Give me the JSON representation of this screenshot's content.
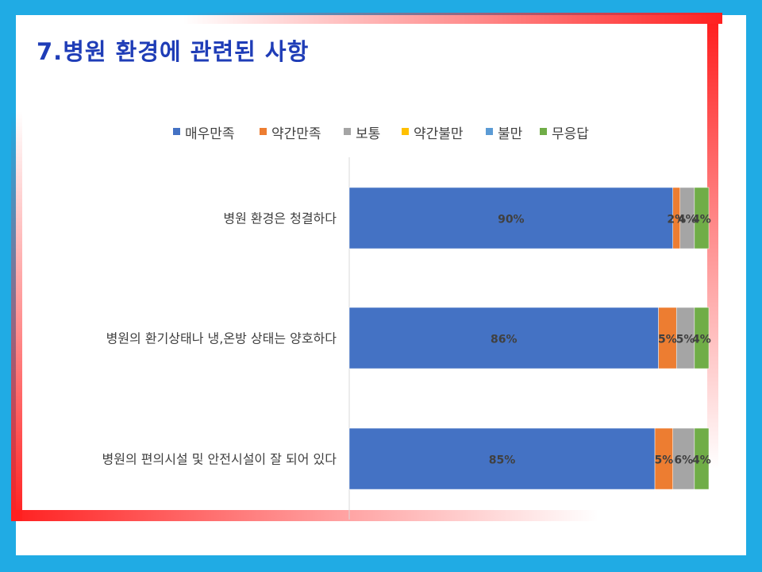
{
  "title": "7.병원 환경에 관련된 사항",
  "chart_data": {
    "type": "bar",
    "orientation": "horizontal",
    "stacked": true,
    "categories": [
      "병원 환경은 청결하다",
      "병원의 환기상태나 냉,온방 상태는 양호하다",
      "병원의 편의시설 및 안전시설이 잘 되어 있다"
    ],
    "series": [
      {
        "name": "매우만족",
        "color": "#4472C4",
        "values": [
          90,
          86,
          85
        ],
        "labels": [
          "90%",
          "86%",
          "85%"
        ]
      },
      {
        "name": "약간만족",
        "color": "#ED7D31",
        "values": [
          2,
          5,
          5
        ],
        "labels": [
          "2%",
          "5%",
          "5%"
        ]
      },
      {
        "name": "보통",
        "color": "#A5A5A5",
        "values": [
          4,
          5,
          6
        ],
        "labels": [
          "4%",
          "5%",
          "6%"
        ]
      },
      {
        "name": "약간불만",
        "color": "#FFC000",
        "values": [
          0,
          0,
          0
        ],
        "labels": [
          "",
          "",
          ""
        ]
      },
      {
        "name": "불만",
        "color": "#5B9BD5",
        "values": [
          0,
          0,
          0
        ],
        "labels": [
          "",
          "",
          ""
        ]
      },
      {
        "name": "무응답",
        "color": "#70AD47",
        "values": [
          4,
          4,
          4
        ],
        "labels": [
          "4%",
          "4%",
          "4%"
        ]
      }
    ],
    "legend_position": "top",
    "grid": false
  }
}
